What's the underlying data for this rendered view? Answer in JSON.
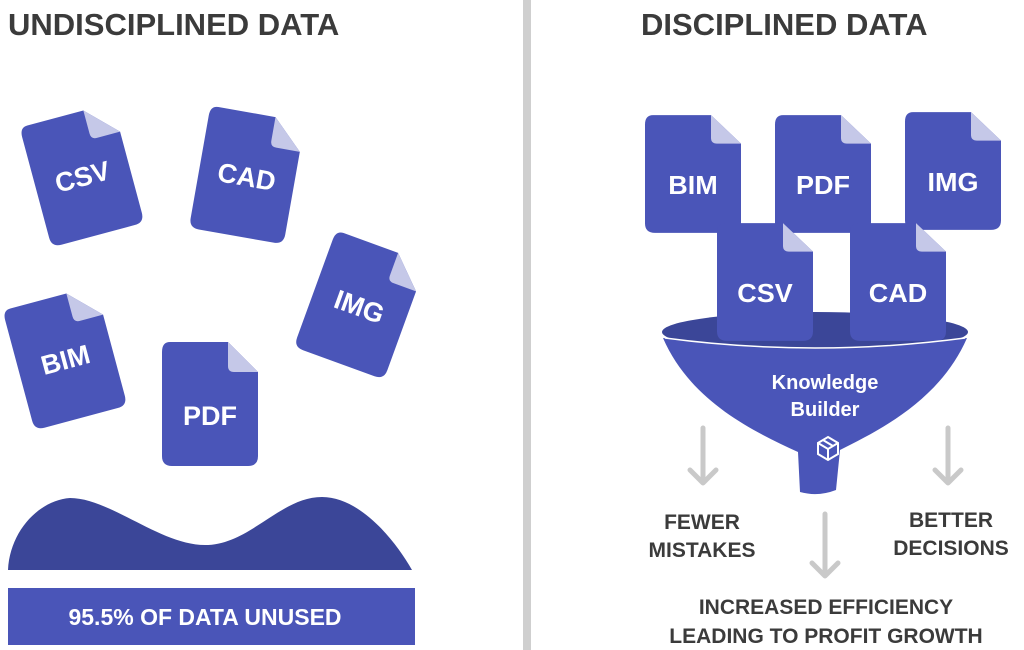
{
  "left": {
    "title": "UNDISCIPLINED DATA",
    "files": [
      "CSV",
      "CAD",
      "IMG",
      "BIM",
      "PDF"
    ],
    "banner": "95.5% OF DATA UNUSED"
  },
  "right": {
    "title": "DISCIPLINED DATA",
    "files": [
      "BIM",
      "PDF",
      "IMG",
      "CSV",
      "CAD"
    ],
    "funnel_line1": "Knowledge",
    "funnel_line2": "Builder",
    "outcomes": {
      "left_line1": "FEWER",
      "left_line2": "MISTAKES",
      "right_line1": "BETTER",
      "right_line2": "DECISIONS",
      "bottom_line1": "INCREASED EFFICIENCY",
      "bottom_line2": "LEADING TO PROFIT GROWTH"
    }
  },
  "colors": {
    "file_blue": "#4a55b8",
    "fold": "#c5c8e8",
    "wave": "#3b4698",
    "divider": "#cfcfcf",
    "arrow": "#c9c9c9",
    "text": "#3b3b3b"
  }
}
